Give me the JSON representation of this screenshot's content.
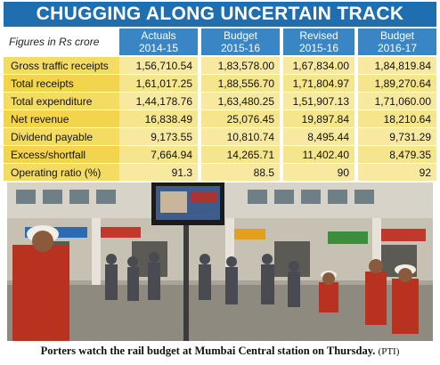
{
  "title": "CHUGGING ALONG UNCERTAIN TRACK",
  "figures_note": "Figures in Rs crore",
  "columns": [
    {
      "line1": "Actuals",
      "line2": "2014-15"
    },
    {
      "line1": "Budget",
      "line2": "2015-16"
    },
    {
      "line1": "Revised",
      "line2": "2015-16"
    },
    {
      "line1": "Budget",
      "line2": "2016-17"
    }
  ],
  "rows": [
    {
      "label": "Gross traffic receipts",
      "values": [
        "1,56,710.54",
        "1,83,578.00",
        "1,67,834.00",
        "1,84,819.84"
      ]
    },
    {
      "label": "Total receipts",
      "values": [
        "1,61,017.25",
        "1,88,556.70",
        "1,71,804.97",
        "1,89,270.64"
      ]
    },
    {
      "label": "Total expenditure",
      "values": [
        "1,44,178.76",
        "1,63,480.25",
        "1,51,907.13",
        "1,71,060.00"
      ]
    },
    {
      "label": "Net revenue",
      "values": [
        "16,838.49",
        "25,076.45",
        "19,897.84",
        "18,210.64"
      ]
    },
    {
      "label": "Dividend payable",
      "values": [
        "9,173.55",
        "10,810.74",
        "8,495.44",
        "9,731.29"
      ]
    },
    {
      "label": "Excess/shortfall",
      "values": [
        "7,664.94",
        "14,265.71",
        "11,402.40",
        "8,479.35"
      ]
    },
    {
      "label": "Operating ratio (%)",
      "values": [
        "91.3",
        "88.5",
        "90",
        "92"
      ]
    }
  ],
  "caption": {
    "text": "Porters watch the rail budget at Mumbai Central station on Thursday.",
    "credit": "(PTI)"
  },
  "colors": {
    "banner": "#1f6fb0",
    "column_header": "#3a86c4",
    "label_cell": "#f4dc62",
    "value_cell": "#f7eaa0"
  }
}
